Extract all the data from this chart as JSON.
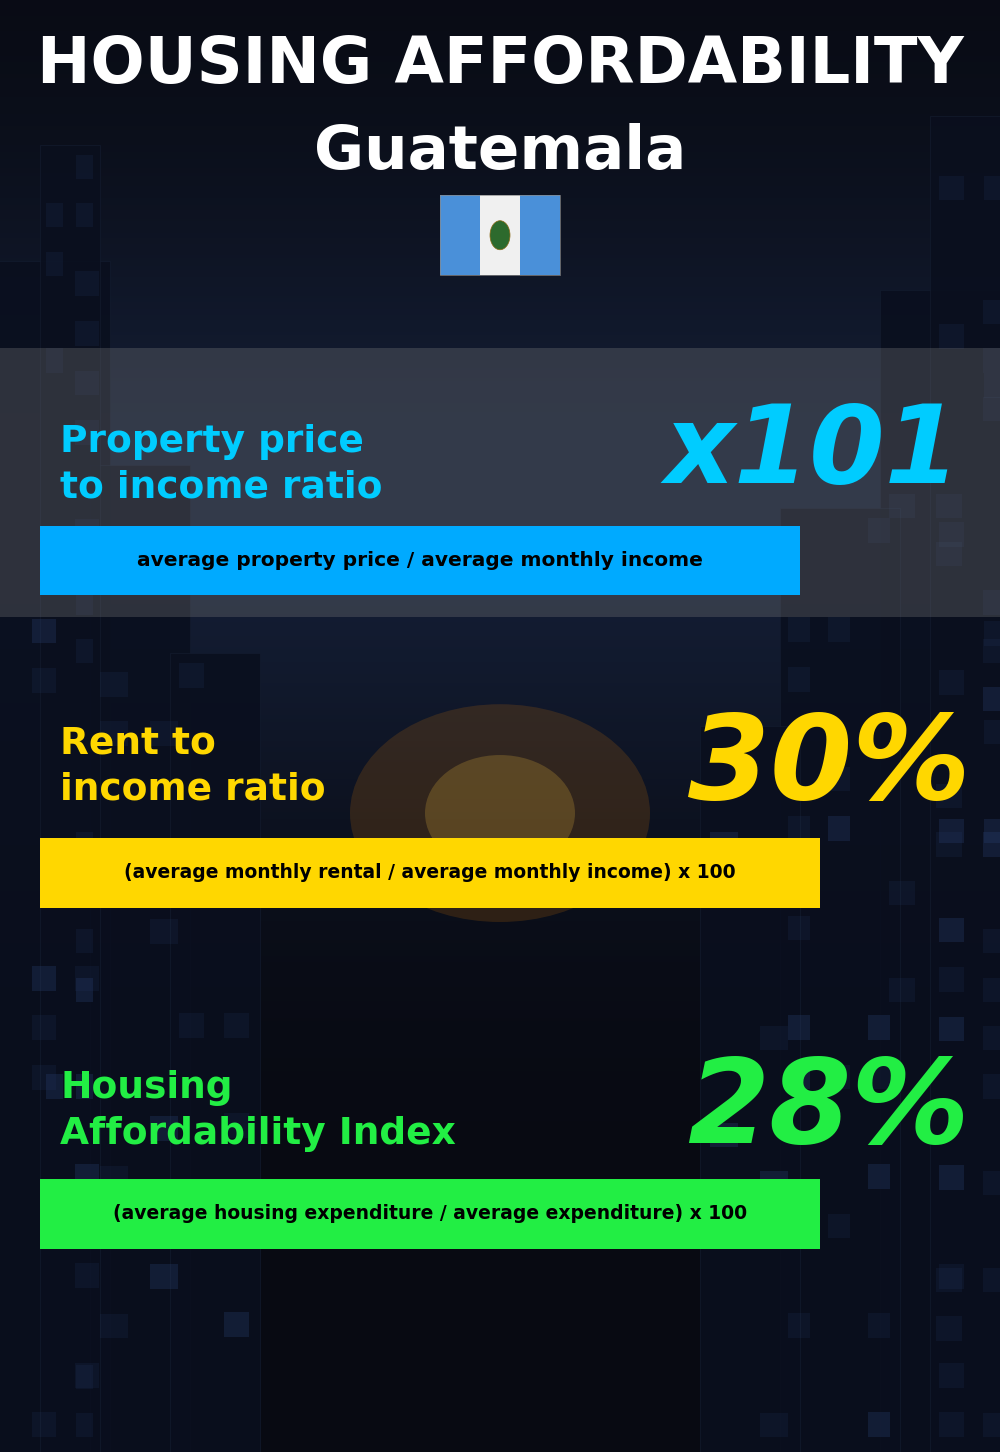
{
  "title_line1": "HOUSING AFFORDABILITY",
  "title_line2": "Guatemala",
  "bg_color": "#0d1117",
  "section1_label": "Property price\nto income ratio",
  "section1_value": "x101",
  "section1_label_color": "#00ccff",
  "section1_value_color": "#00ccff",
  "section1_banner_text": "average property price / average monthly income",
  "section1_banner_bg": "#00aaff",
  "section1_banner_text_color": "#000000",
  "section1_overlay_color": "#3a3d45",
  "section1_overlay_alpha": 0.55,
  "section2_label": "Rent to\nincome ratio",
  "section2_value": "30%",
  "section2_label_color": "#ffd700",
  "section2_value_color": "#ffd700",
  "section2_banner_text": "(average monthly rental / average monthly income) x 100",
  "section2_banner_bg": "#ffd700",
  "section2_banner_text_color": "#000000",
  "section3_label": "Housing\nAffordability Index",
  "section3_value": "28%",
  "section3_label_color": "#22ee44",
  "section3_value_color": "#22ee44",
  "section3_banner_text": "(average housing expenditure / average expenditure) x 100",
  "section3_banner_bg": "#22ee44",
  "section3_banner_text_color": "#000000",
  "title_color": "#ffffff",
  "subtitle_color": "#ffffff",
  "flag_blue": "#4a90d9",
  "flag_white": "#ffffff",
  "flag_green_emblem": "#2d6a2d"
}
